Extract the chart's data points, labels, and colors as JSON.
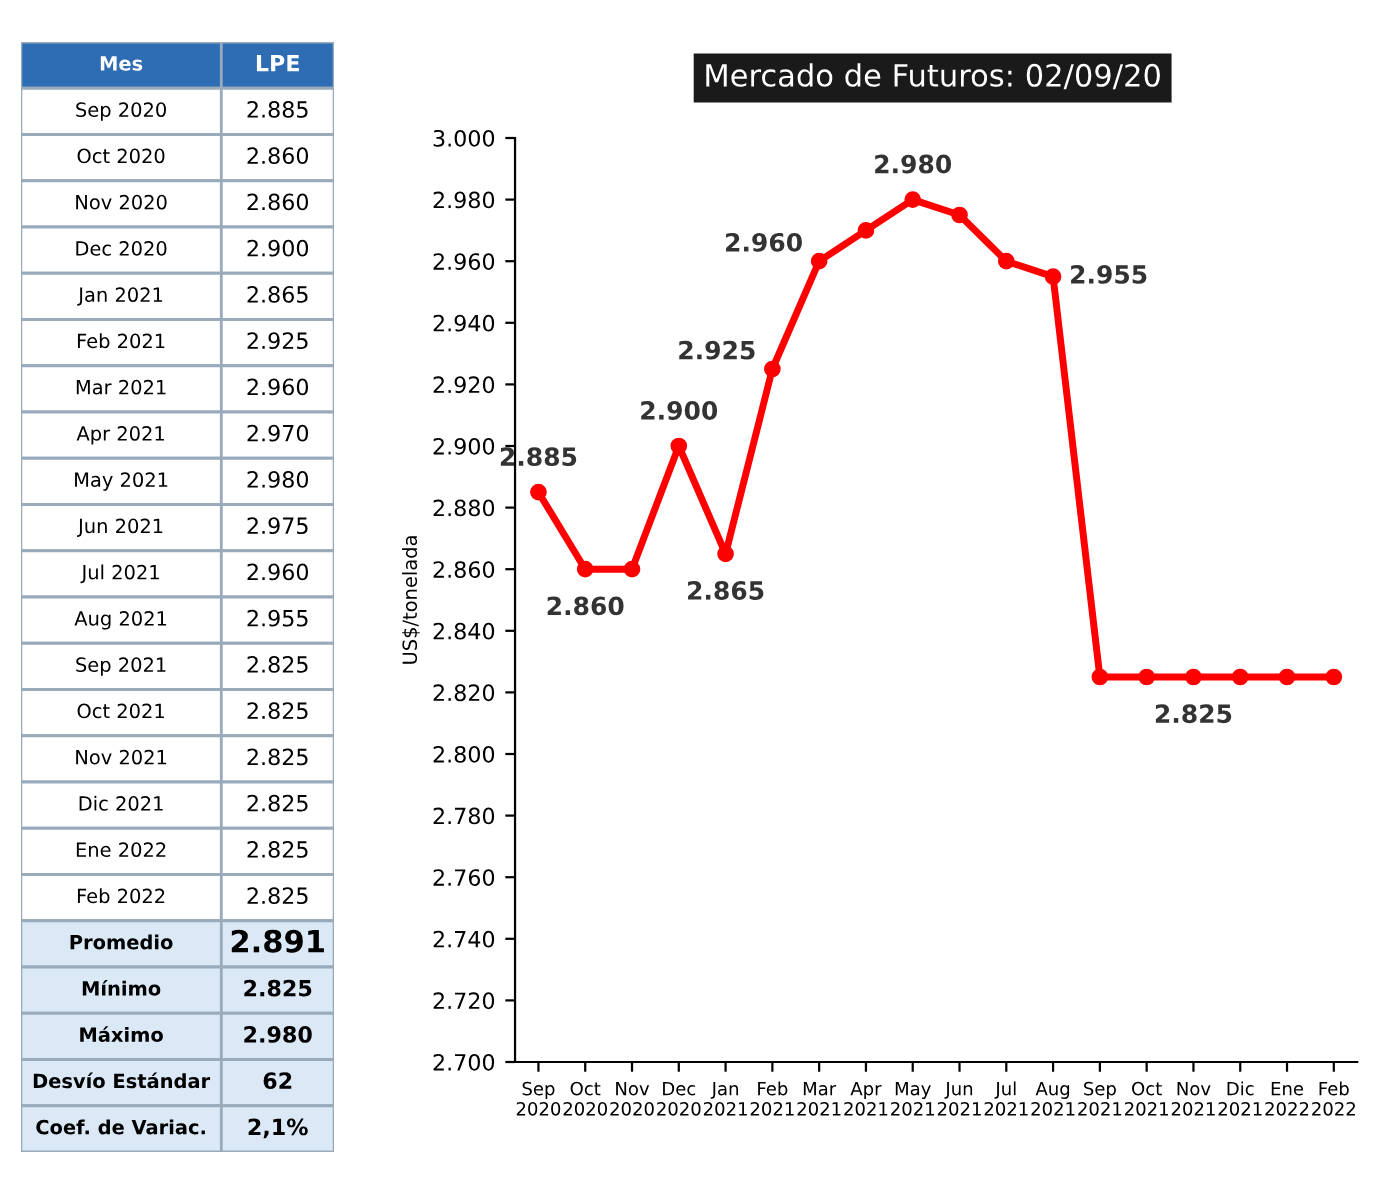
{
  "chart_data": {
    "type": "line",
    "title": "Mercado de Futuros: 02/09/20",
    "ylabel": "US$/tonelada",
    "categories": [
      "Sep 2020",
      "Oct 2020",
      "Nov 2020",
      "Dec 2020",
      "Jan 2021",
      "Feb 2021",
      "Mar 2021",
      "Apr 2021",
      "May 2021",
      "Jun 2021",
      "Jul 2021",
      "Aug 2021",
      "Sep 2021",
      "Oct 2021",
      "Nov 2021",
      "Dic 2021",
      "Ene 2022",
      "Feb 2022"
    ],
    "values": [
      2885,
      2860,
      2860,
      2900,
      2865,
      2925,
      2960,
      2970,
      2980,
      2975,
      2960,
      2955,
      2825,
      2825,
      2825,
      2825,
      2825,
      2825
    ],
    "color": "#ff0000",
    "marker": "circle",
    "line_style": "solid",
    "value_labels": [
      "2.885",
      "2.860",
      null,
      "2.900",
      "2.865",
      "2.925",
      "2.960",
      null,
      "2.980",
      null,
      null,
      "2.955",
      null,
      null,
      "2.825",
      null,
      null,
      null
    ],
    "ylim": [
      2700,
      3000
    ],
    "yticks": [
      {
        "value": 2700,
        "label": "2.700"
      },
      {
        "value": 2720,
        "label": "2.720"
      },
      {
        "value": 2740,
        "label": "2.740"
      },
      {
        "value": 2760,
        "label": "2.760"
      },
      {
        "value": 2780,
        "label": "2.780"
      },
      {
        "value": 2800,
        "label": "2.800"
      },
      {
        "value": 2820,
        "label": "2.820"
      },
      {
        "value": 2840,
        "label": "2.840"
      },
      {
        "value": 2860,
        "label": "2.860"
      },
      {
        "value": 2880,
        "label": "2.880"
      },
      {
        "value": 2900,
        "label": "2.900"
      },
      {
        "value": 2920,
        "label": "2.920"
      },
      {
        "value": 2940,
        "label": "2.940"
      },
      {
        "value": 2960,
        "label": "2.960"
      },
      {
        "value": 2980,
        "label": "2.980"
      },
      {
        "value": 3000,
        "label": "3.000"
      }
    ],
    "grid": false,
    "annotations": [
      "Mes",
      "LPE",
      "Sep 2020",
      "2.885",
      "Oct 2020",
      "2.860",
      "Nov 2020",
      "2.860",
      "Dec 2020",
      "2.900",
      "Jan 2021",
      "2.865",
      "Feb 2021",
      "2.925",
      "Mar 2021",
      "2.960",
      "Apr 2021",
      "2.970",
      "May 2021",
      "2.980",
      "Jun 2021",
      "2.975",
      "Jul 2021",
      "2.960",
      "Aug 2021",
      "2.955",
      "Sep 2021",
      "2.825",
      "Oct 2021",
      "2.825",
      "Nov 2021",
      "2.825",
      "Dic 2021",
      "2.825",
      "Ene 2022",
      "2.825",
      "Feb 2022",
      "2.825",
      "Promedio",
      "2.891",
      "Mínimo",
      "2.825",
      "Máximo",
      "2.980",
      "Desvío Estándar",
      "62",
      "Coef. de Variac.",
      "2,1%"
    ]
  }
}
